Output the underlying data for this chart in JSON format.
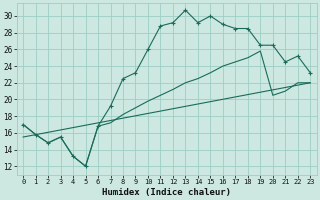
{
  "xlabel": "Humidex (Indice chaleur)",
  "bg_color": "#cce8e0",
  "grid_color": "#9ecec4",
  "line_color": "#1a6b5a",
  "x_ticks": [
    0,
    1,
    2,
    3,
    4,
    5,
    6,
    7,
    8,
    9,
    10,
    11,
    12,
    13,
    14,
    15,
    16,
    17,
    18,
    19,
    20,
    21,
    22,
    23
  ],
  "y_ticks": [
    12,
    14,
    16,
    18,
    20,
    22,
    24,
    26,
    28,
    30
  ],
  "ylim": [
    11.0,
    31.5
  ],
  "xlim": [
    -0.5,
    23.5
  ],
  "curve1_x": [
    0,
    1,
    2,
    3,
    4,
    5,
    6,
    7,
    8,
    9,
    10,
    11,
    12,
    13,
    14,
    15,
    16,
    17,
    18,
    19,
    20,
    21,
    22,
    23
  ],
  "curve1_y": [
    17.0,
    15.8,
    14.8,
    15.5,
    13.2,
    12.0,
    16.8,
    19.2,
    22.5,
    23.2,
    26.0,
    28.8,
    29.2,
    30.7,
    29.2,
    30.0,
    29.0,
    28.5,
    28.5,
    26.5,
    26.5,
    24.5,
    25.2,
    23.2
  ],
  "curve2_x": [
    0,
    1,
    2,
    3,
    4,
    5,
    6,
    7,
    8,
    9,
    10,
    11,
    12,
    13,
    14,
    15,
    16,
    17,
    18,
    19,
    20,
    21,
    22,
    23
  ],
  "curve2_y": [
    17.0,
    15.8,
    14.8,
    15.5,
    13.2,
    12.0,
    16.8,
    17.2,
    18.2,
    19.0,
    19.8,
    20.5,
    21.2,
    22.0,
    22.5,
    23.2,
    24.0,
    24.5,
    25.0,
    25.8,
    20.5,
    21.0,
    22.0,
    22.0
  ],
  "curve3_x": [
    0,
    23
  ],
  "curve3_y": [
    15.5,
    22.0
  ]
}
